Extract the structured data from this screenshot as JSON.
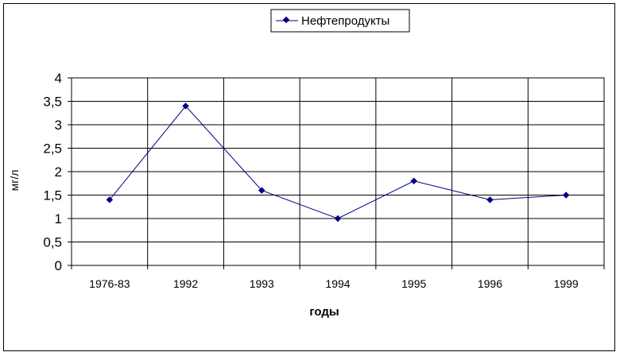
{
  "chart_data": {
    "type": "line",
    "categories": [
      "1976-83",
      "1992",
      "1993",
      "1994",
      "1995",
      "1996",
      "1999"
    ],
    "series": [
      {
        "name": "Нефтепродукты",
        "values": [
          1.4,
          3.4,
          1.6,
          1.0,
          1.8,
          1.4,
          1.5
        ],
        "color": "#000080"
      }
    ],
    "xlabel": "годы",
    "ylabel": "мг/л",
    "ylim": [
      0,
      4
    ],
    "yticks": [
      "0",
      "0,5",
      "1",
      "1,5",
      "2",
      "2,5",
      "3",
      "3,5",
      "4"
    ],
    "ytick_values": [
      0,
      0.5,
      1,
      1.5,
      2,
      2.5,
      3,
      3.5,
      4
    ],
    "grid": true,
    "legend_position": "top-center"
  }
}
